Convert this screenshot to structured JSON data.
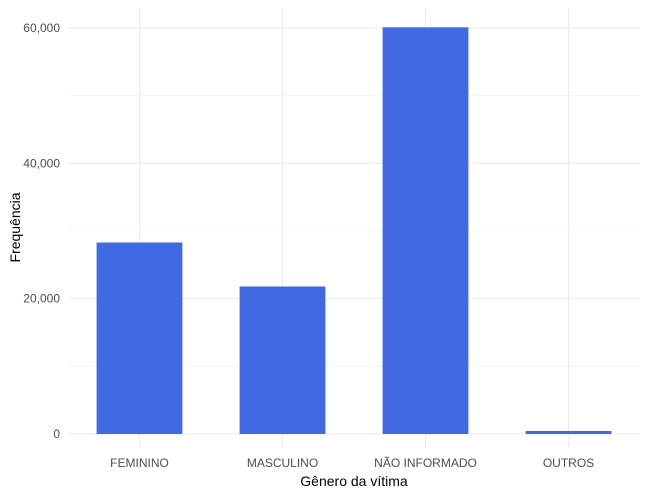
{
  "chart_data": {
    "type": "bar",
    "categories": [
      "FEMININO",
      "MASCULINO",
      "NÃO INFORMADO",
      "OUTROS"
    ],
    "values": [
      28300,
      21800,
      60100,
      450
    ],
    "xlabel": "Gênero da vítima",
    "ylabel": "Frequência",
    "ylim": [
      0,
      63000
    ],
    "yticks": [
      0,
      20000,
      40000,
      60000
    ],
    "ytick_labels": [
      "0",
      "20,000",
      "40,000",
      "60,000"
    ],
    "grid": true,
    "bar_color": "#4169E1",
    "background": "#ffffff"
  }
}
